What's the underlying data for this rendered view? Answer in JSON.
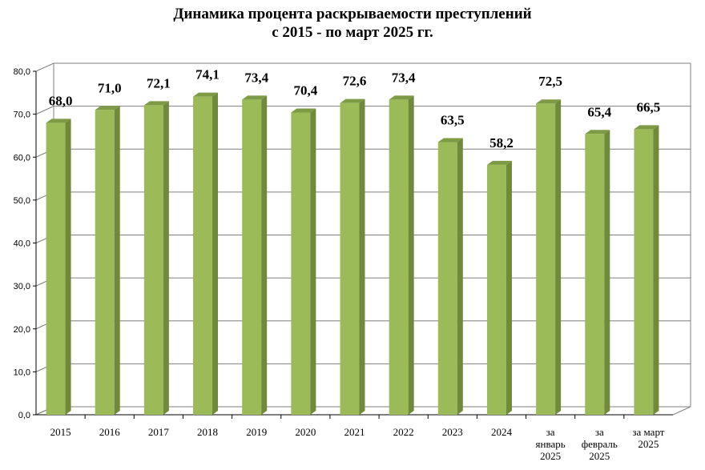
{
  "chart_data": {
    "type": "bar",
    "title": [
      "Динамика процента раскрываемости преступлений",
      "с 2015 - по март 2025 гг."
    ],
    "categories": [
      [
        "2015"
      ],
      [
        "2016"
      ],
      [
        "2017"
      ],
      [
        "2018"
      ],
      [
        "2019"
      ],
      [
        "2020"
      ],
      [
        "2021"
      ],
      [
        "2022"
      ],
      [
        "2023"
      ],
      [
        "2024"
      ],
      [
        "за",
        "январь",
        "2025"
      ],
      [
        "за",
        "февраль",
        "2025"
      ],
      [
        "за март",
        "2025"
      ]
    ],
    "values": [
      68.0,
      71.0,
      72.1,
      74.1,
      73.4,
      70.4,
      72.6,
      73.4,
      63.5,
      58.2,
      72.5,
      65.4,
      66.5
    ],
    "value_labels": [
      "68,0",
      "71,0",
      "72,1",
      "74,1",
      "73,4",
      "70,4",
      "72,6",
      "73,4",
      "63,5",
      "58,2",
      "72,5",
      "65,4",
      "66,5"
    ],
    "ylim": [
      0,
      80
    ],
    "y_ticks": [
      "0,0",
      "10,0",
      "20,0",
      "30,0",
      "40,0",
      "50,0",
      "60,0",
      "70,0",
      "80,0"
    ],
    "grid": true,
    "legend": "none",
    "colors": {
      "bar_front": "#9bbb59",
      "bar_side": "#6f8a3a",
      "bar_top": "#7d9a44",
      "grid": "#7f7f7f"
    }
  }
}
